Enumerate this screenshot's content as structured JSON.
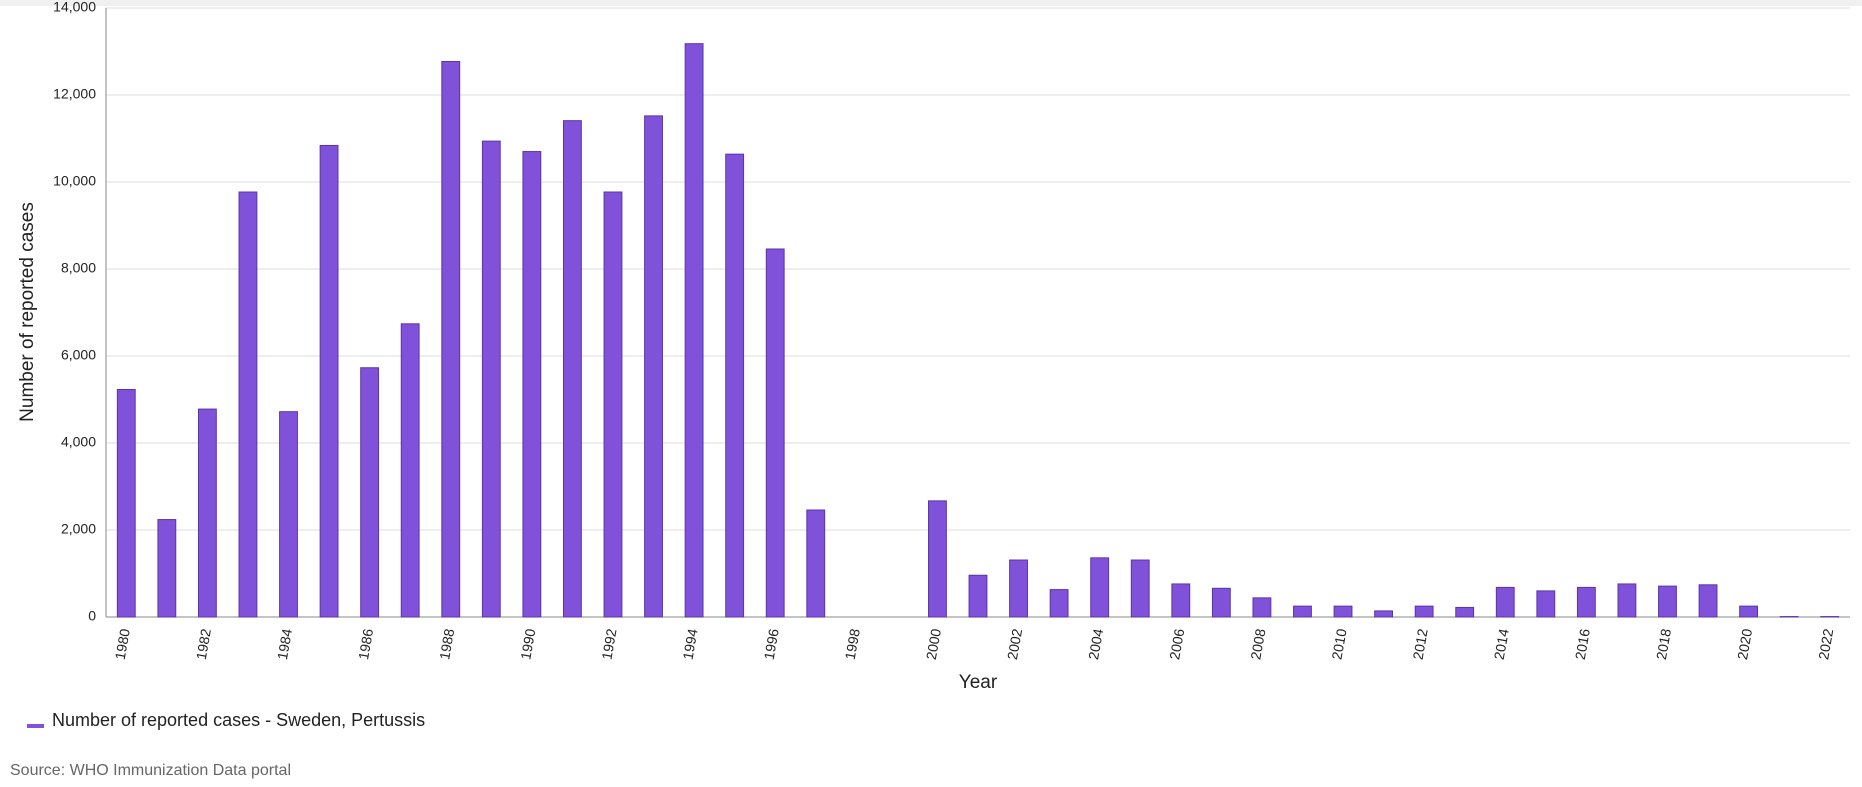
{
  "chart_data": {
    "type": "bar",
    "x_label": "Year",
    "y_label": "Number of reported cases",
    "categories": [
      "1980",
      null,
      "1982",
      null,
      "1984",
      null,
      "1986",
      null,
      "1988",
      null,
      "1990",
      null,
      "1992",
      null,
      "1994",
      null,
      "1996",
      null,
      "1998",
      null,
      "2000",
      null,
      "2002",
      null,
      "2004",
      null,
      "2006",
      null,
      "2008",
      null,
      "2010",
      null,
      "2012",
      null,
      "2014",
      null,
      "2016",
      null,
      "2018",
      null,
      "2020",
      null,
      "2022"
    ],
    "series": [
      {
        "name": "Number of reported cases - Sweden, Pertussis",
        "color": "#8052d9",
        "values": [
          5230,
          2240,
          4780,
          9770,
          4720,
          10840,
          5730,
          6740,
          12770,
          10940,
          10700,
          11410,
          9770,
          11520,
          13180,
          10640,
          8460,
          2460,
          null,
          null,
          2670,
          960,
          1310,
          630,
          1360,
          1310,
          760,
          660,
          440,
          250,
          250,
          140,
          250,
          220,
          680,
          600,
          680,
          760,
          710,
          740,
          250,
          10,
          10
        ]
      }
    ],
    "ylim": [
      0,
      14000
    ],
    "yticks": [
      0,
      {
        "value": 2000,
        "label": "2,000"
      },
      {
        "value": 4000,
        "label": "4,000"
      },
      {
        "value": 6000,
        "label": "6,000"
      },
      {
        "value": 8000,
        "label": "8,000"
      },
      {
        "value": 10000,
        "label": "10,000"
      },
      {
        "value": 12000,
        "label": "12,000"
      },
      {
        "value": 14000,
        "label": "14,000"
      }
    ],
    "grid": true,
    "legend": "bottom-left",
    "source": "Source: WHO Immunization Data portal"
  }
}
